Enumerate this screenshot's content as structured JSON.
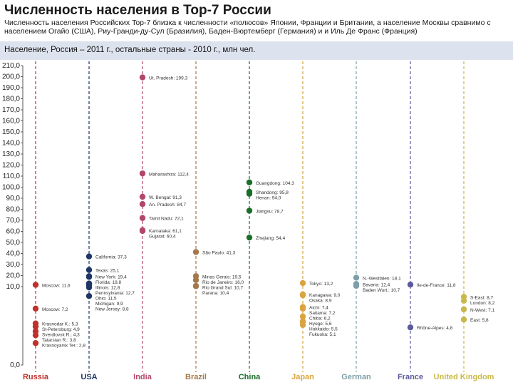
{
  "header": {
    "title": "Численность населения в Top-7 России",
    "subtitle": "Численность населения Российских Top-7 близка к численности «полюсов» Японии, Франции и Британии, а население Москвы сравнимо с населением Огайо (США), Риу-Гранди-ду-Сул (Бразилия), Баден-Вюртемберг (Германия) и и Иль Де Франс (Франция)",
    "caption": "Население, Россия – 2011 г., остальные страны - 2010 г., млн чел."
  },
  "colors": {
    "Russia": "#c0312b",
    "USA": "#1f3566",
    "India": "#b2476d",
    "Brazil": "#a5784a",
    "China": "#1b6e2a",
    "Japan": "#d9a441",
    "German": "#7e9fa9",
    "France": "#5a5a9c",
    "United Kingdom": "#c9b84a"
  },
  "chart_data": {
    "type": "scatter",
    "title": "",
    "xlabel": "",
    "ylabel": "",
    "categories": [
      "Russia",
      "USA",
      "India",
      "Brazil",
      "China",
      "Japan",
      "German",
      "France",
      "United Kingdom"
    ],
    "y_axis_break": 10,
    "ylim": [
      0,
      210
    ],
    "y_ticks_lower": [
      "0,0",
      "10,0"
    ],
    "y_ticks_upper": [
      "10,0",
      "20,0",
      "30,0",
      "40,0",
      "50,0",
      "60,0",
      "70,0",
      "80,0",
      "90,0",
      "100,0",
      "110,0",
      "120,0",
      "130,0",
      "140,0",
      "150,0",
      "160,0",
      "170,0",
      "180,0",
      "190,0",
      "200,0",
      "210,0"
    ],
    "series": [
      {
        "name": "Russia",
        "points": [
          {
            "label": "Moscow: 11,6",
            "value": 11.6
          },
          {
            "label": "Moscow: 7,2",
            "value": 7.2
          },
          {
            "label": "Krasnodar K.: 5,3",
            "value": 5.3
          },
          {
            "label": "St-Petersburg: 4,9",
            "value": 4.9
          },
          {
            "label": "Sverdlovsk R.: 4,3",
            "value": 4.3
          },
          {
            "label": "Tatarstan R.: 3,8",
            "value": 3.8
          },
          {
            "label": "Krasnoyarsk Ter.: 2,8",
            "value": 2.8
          }
        ]
      },
      {
        "name": "USA",
        "points": [
          {
            "label": "California: 37,3",
            "value": 37.3
          },
          {
            "label": "Texas: 25,1",
            "value": 25.1
          },
          {
            "label": "New York: 19,4",
            "value": 19.4
          },
          {
            "label": "Florida: 18,8",
            "value": 18.8
          },
          {
            "label": "Illinois: 12,8",
            "value": 12.8
          },
          {
            "label": "Pennsylvania: 12,7",
            "value": 12.7
          },
          {
            "label": "Ohio: 11,5",
            "value": 11.5
          },
          {
            "label": "Michigan: 9,9",
            "value": 9.9
          },
          {
            "label": "New Jersey: 8,8",
            "value": 8.8
          }
        ]
      },
      {
        "name": "India",
        "points": [
          {
            "label": "Ut. Pradesh: 199,3",
            "value": 199.3
          },
          {
            "label": "Maharashtra: 112,4",
            "value": 112.4
          },
          {
            "label": "W. Bengal: 91,3",
            "value": 91.3
          },
          {
            "label": "An. Pradesh: 84,7",
            "value": 84.7
          },
          {
            "label": "Tamil Nadu: 72,1",
            "value": 72.1
          },
          {
            "label": "Karnataka: 61,1",
            "value": 61.1
          },
          {
            "label": "Gujarat: 60,4",
            "value": 60.4
          }
        ]
      },
      {
        "name": "Brazil",
        "points": [
          {
            "label": "São Paulo: 41,3",
            "value": 41.3
          },
          {
            "label": "Minas Gerais: 19,5",
            "value": 19.5
          },
          {
            "label": "Rio de Janeiro: 16,0",
            "value": 16.0
          },
          {
            "label": "Rio Grand Sul: 10,7",
            "value": 10.7
          },
          {
            "label": "Parana: 10,4",
            "value": 10.4
          }
        ]
      },
      {
        "name": "China",
        "points": [
          {
            "label": "Guangdong: 104,3",
            "value": 104.3
          },
          {
            "label": "Shandong: 95,8",
            "value": 95.8
          },
          {
            "label": "Henan: 94,0",
            "value": 94.0
          },
          {
            "label": "Jiangsu: 78,7",
            "value": 78.7
          },
          {
            "label": "Zhejiang: 54,4",
            "value": 54.4
          }
        ]
      },
      {
        "name": "Japan",
        "points": [
          {
            "label": "Tokyo: 13,2",
            "value": 13.2
          },
          {
            "label": "Kanagawa: 9,0",
            "value": 9.0
          },
          {
            "label": "Osaka: 8,9",
            "value": 8.9
          },
          {
            "label": "Aichi: 7,4",
            "value": 7.4
          },
          {
            "label": "Saitama: 7,2",
            "value": 7.2
          },
          {
            "label": "Chiba: 6,2",
            "value": 6.2
          },
          {
            "label": "Hyogo: 5,6",
            "value": 5.6
          },
          {
            "label": "Hokkaido: 5,5",
            "value": 5.5
          },
          {
            "label": "Fukuoka: 5,1",
            "value": 5.1
          }
        ]
      },
      {
        "name": "German",
        "points": [
          {
            "label": "N.-Westfalen: 18,1",
            "value": 18.1
          },
          {
            "label": "Bavaria: 12,4",
            "value": 12.4
          },
          {
            "label": "Baden Wurt.: 10,7",
            "value": 10.7
          }
        ]
      },
      {
        "name": "France",
        "points": [
          {
            "label": "Ile-de-France: 11,8",
            "value": 11.8
          },
          {
            "label": "Rhône-Alpes: 4,8",
            "value": 4.8
          }
        ]
      },
      {
        "name": "United Kingdom",
        "points": [
          {
            "label": "S-East: 8,7",
            "value": 8.7
          },
          {
            "label": "London: 8,2",
            "value": 8.2
          },
          {
            "label": "N-West: 7,1",
            "value": 7.1
          },
          {
            "label": "East: 5,8",
            "value": 5.8
          }
        ]
      }
    ]
  }
}
